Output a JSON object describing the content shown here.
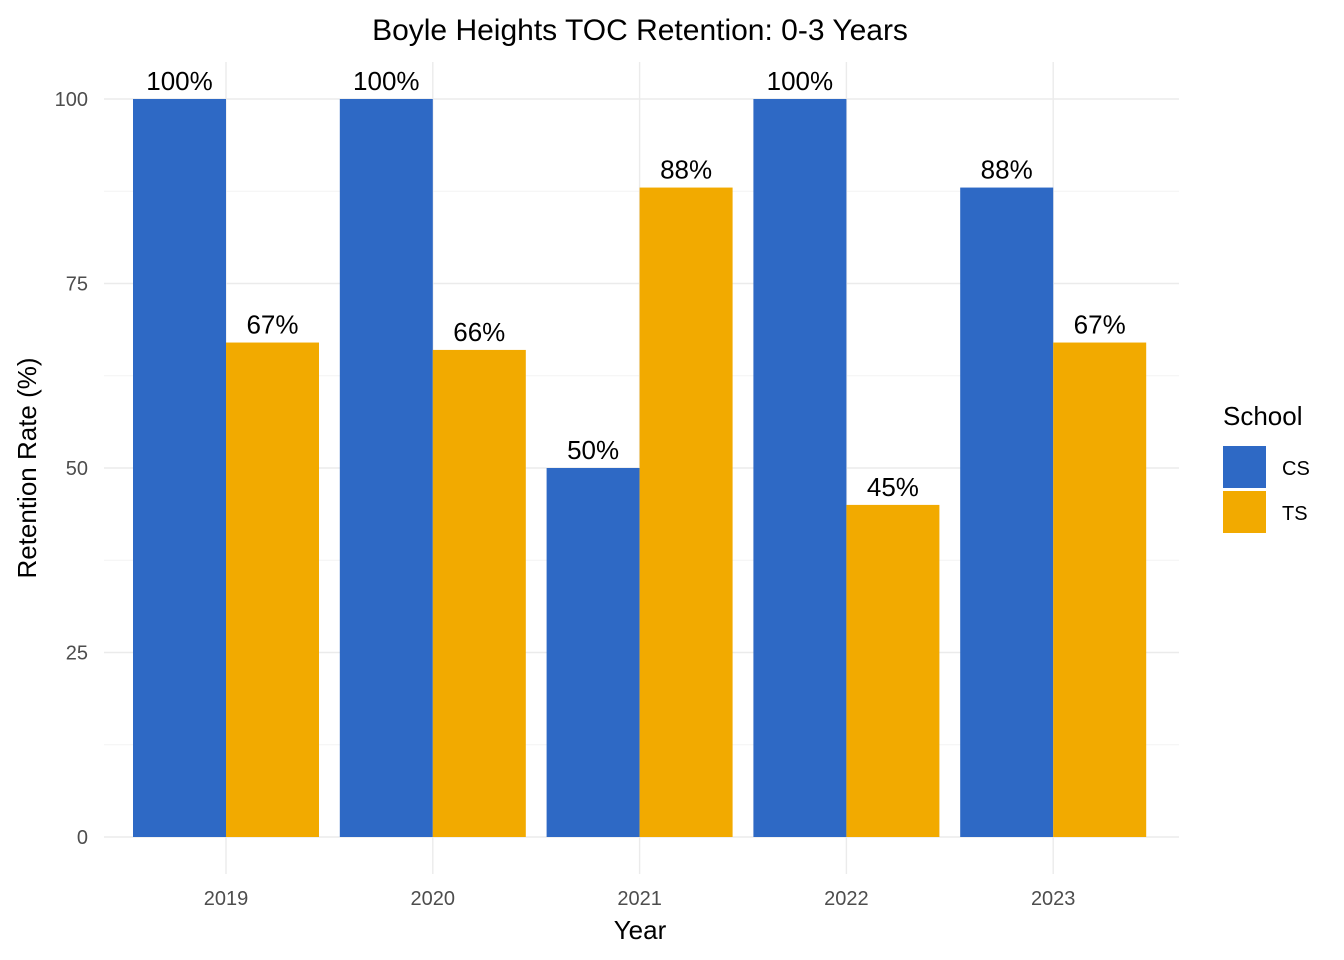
{
  "chart_data": {
    "type": "bar",
    "title": "Boyle Heights TOC Retention: 0-3 Years",
    "xlabel": "Year",
    "ylabel": "Retention Rate (%)",
    "categories": [
      "2019",
      "2020",
      "2021",
      "2022",
      "2023"
    ],
    "ylim": [
      0,
      105
    ],
    "yticks": [
      0,
      25,
      50,
      75,
      100
    ],
    "grid": true,
    "legend": {
      "title": "School",
      "placement": "right"
    },
    "series": [
      {
        "name": "CS",
        "color": "#2e69c5",
        "values": [
          100,
          100,
          50,
          100,
          88
        ],
        "labels": [
          "100%",
          "100%",
          "50%",
          "100%",
          "88%"
        ]
      },
      {
        "name": "TS",
        "color": "#f2aa00",
        "values": [
          67,
          66,
          88,
          45,
          67
        ],
        "labels": [
          "67%",
          "66%",
          "88%",
          "45%",
          "67%"
        ]
      }
    ]
  }
}
